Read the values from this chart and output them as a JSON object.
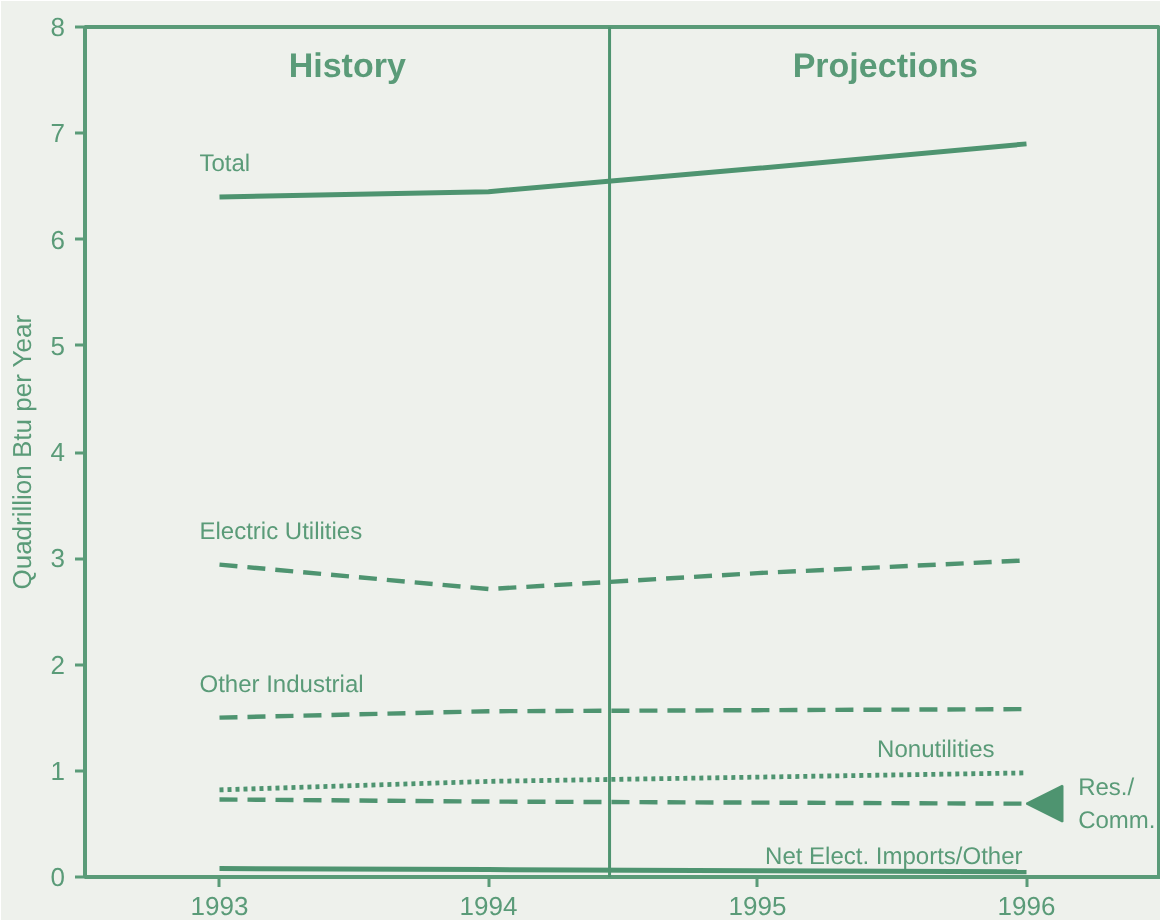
{
  "chart_data": {
    "type": "line",
    "ylabel": "Quadrillion Btu per Year",
    "x": [
      1993,
      1994,
      1995,
      1996
    ],
    "xlim": [
      1992.5,
      1996.5
    ],
    "xticks": [
      1993,
      1994,
      1995,
      1996
    ],
    "ylim": [
      0,
      8
    ],
    "yticks": [
      0,
      1,
      2,
      3,
      4,
      5,
      6,
      7,
      8
    ],
    "grid": false,
    "annotations": [
      "History",
      "Projections"
    ],
    "ref_lines": [
      {
        "axis": "x",
        "value": 1994.45,
        "color": "#4e9470"
      }
    ],
    "series": [
      {
        "name": "Total",
        "color": "#4e9470",
        "line_style": "solid",
        "values": [
          6.4,
          6.45,
          6.67,
          6.9
        ]
      },
      {
        "name": "Electric Utilities",
        "color": "#4e9470",
        "line_style": "dashed",
        "values": [
          2.94,
          2.71,
          2.86,
          2.98
        ]
      },
      {
        "name": "Other Industrial",
        "color": "#4e9470",
        "line_style": "dashed",
        "values": [
          1.5,
          1.56,
          1.57,
          1.58
        ]
      },
      {
        "name": "Nonutilities",
        "color": "#4e9470",
        "line_style": "dotted",
        "values": [
          0.82,
          0.9,
          0.94,
          0.98
        ]
      },
      {
        "name": "Res./ Comm.",
        "color": "#4e9470",
        "line_style": "dashed",
        "values": [
          0.73,
          0.71,
          0.7,
          0.69
        ]
      },
      {
        "name": "Net Elect. Imports/Other",
        "color": "#4e9470",
        "line_style": "solid",
        "values": [
          0.08,
          0.07,
          0.06,
          0.05
        ]
      }
    ]
  }
}
